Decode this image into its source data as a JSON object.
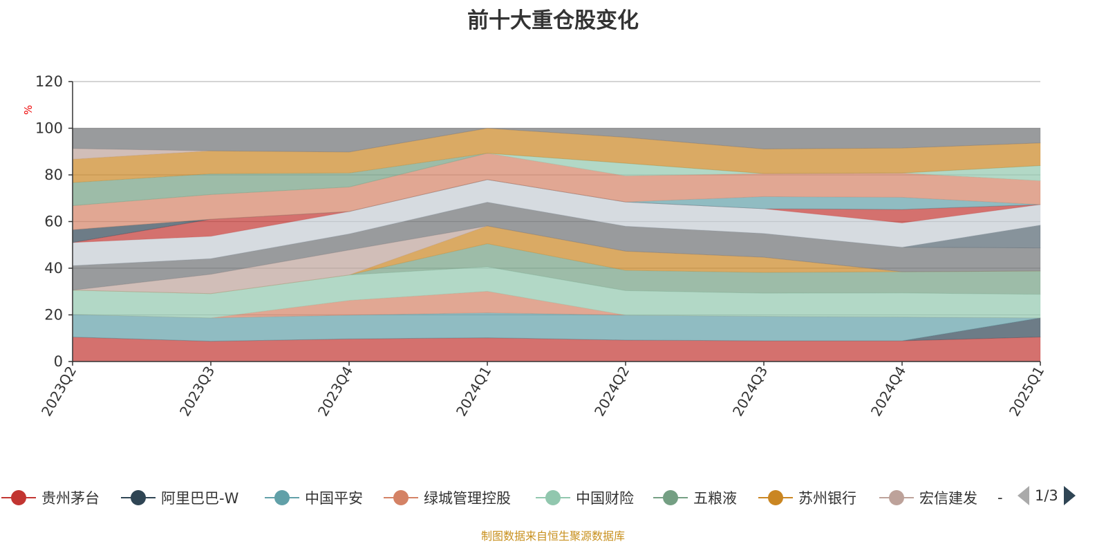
{
  "chart_data": {
    "type": "area",
    "stacked": true,
    "title": "前十大重仓股变化",
    "ylabel": "%",
    "xlabel": "",
    "ylim": [
      0,
      120
    ],
    "yticks": [
      0,
      20,
      40,
      60,
      80,
      100,
      120
    ],
    "grid": true,
    "legend_position": "bottom",
    "categories": [
      "2023Q2",
      "2023Q3",
      "2023Q4",
      "2024Q1",
      "2024Q2",
      "2024Q3",
      "2024Q4",
      "2025Q1"
    ],
    "series": [
      {
        "name": "贵州茅台",
        "color": "#c23531",
        "values": [
          10.5,
          8.7,
          9.7,
          10.2,
          9.2,
          8.9,
          8.9,
          10.5
        ]
      },
      {
        "name": "阿里巴巴-W",
        "color": "#2f4554",
        "values": [
          0,
          0,
          0,
          0,
          0,
          0,
          0,
          8.2
        ]
      },
      {
        "name": "中国平安",
        "color": "#61a0a8",
        "values": [
          9.7,
          10.0,
          10.2,
          10.7,
          10.7,
          10.5,
          10.2,
          0
        ]
      },
      {
        "name": "绿城管理控股",
        "color": "#d48265",
        "values": [
          0,
          0,
          6.3,
          9.2,
          0,
          0,
          0,
          0
        ]
      },
      {
        "name": "中国财险",
        "color": "#91c7ae",
        "values": [
          10.4,
          10.4,
          10.9,
          10.5,
          10.5,
          9.9,
          10.3,
          10.1
        ]
      },
      {
        "name": "五粮液",
        "color": "#749f83",
        "values": [
          0,
          0,
          0,
          9.9,
          8.7,
          8.9,
          9.1,
          10.0
        ]
      },
      {
        "name": "苏州银行",
        "color": "#ca8622",
        "values": [
          0,
          0,
          0,
          7.6,
          8.2,
          6.5,
          0,
          0
        ]
      },
      {
        "name": "宏信建发",
        "color": "#bda29a",
        "values": [
          0,
          8.3,
          10.7,
          0,
          0,
          0,
          0,
          0
        ]
      },
      {
        "name": null,
        "color": "#6e7074",
        "values": [
          10.5,
          6.7,
          6.9,
          10.2,
          10.7,
          10.2,
          10.5,
          9.9
        ]
      },
      {
        "name": null,
        "color": "#546570",
        "values": [
          0,
          0,
          0,
          0,
          0,
          0,
          0,
          9.8
        ]
      },
      {
        "name": null,
        "color": "#c4ccd3",
        "values": [
          9.9,
          9.6,
          9.6,
          9.7,
          10.4,
          10.6,
          10.4,
          8.8
        ]
      },
      {
        "name": null,
        "color": "#c23531",
        "values": [
          0,
          7.3,
          0,
          0,
          0,
          0,
          5.8,
          0
        ]
      },
      {
        "name": null,
        "color": "#2f4554",
        "values": [
          5.5,
          0,
          0,
          0,
          0,
          0,
          0,
          0
        ]
      },
      {
        "name": null,
        "color": "#61a0a8",
        "values": [
          0,
          0,
          0,
          0,
          0,
          5.2,
          5.2,
          0
        ]
      },
      {
        "name": null,
        "color": "#d48265",
        "values": [
          10.3,
          10.6,
          10.5,
          11.3,
          11.2,
          9.9,
          10.4,
          10.2
        ]
      },
      {
        "name": null,
        "color": "#91c7ae",
        "values": [
          0,
          0,
          0,
          0,
          5.4,
          0,
          0,
          6.5
        ]
      },
      {
        "name": null,
        "color": "#749f83",
        "values": [
          9.9,
          8.9,
          6.0,
          0,
          0,
          0,
          0,
          0
        ]
      },
      {
        "name": null,
        "color": "#ca8622",
        "values": [
          10.0,
          9.8,
          9.0,
          10.7,
          11.1,
          10.5,
          10.7,
          9.7
        ]
      },
      {
        "name": null,
        "color": "#bda29a",
        "values": [
          4.6,
          0,
          0,
          0,
          0,
          0,
          0,
          0
        ]
      },
      {
        "name": null,
        "color": "#6e7074",
        "values": [
          8.7,
          9.7,
          10.2,
          0,
          3.9,
          8.9,
          8.5,
          6.3
        ]
      }
    ]
  },
  "legend": {
    "items": [
      {
        "label": "贵州茅台",
        "color": "#c23531"
      },
      {
        "label": "阿里巴巴-W",
        "color": "#2f4554"
      },
      {
        "label": "中国平安",
        "color": "#61a0a8"
      },
      {
        "label": "绿城管理控股",
        "color": "#d48265"
      },
      {
        "label": "中国财险",
        "color": "#91c7ae"
      },
      {
        "label": "五粮液",
        "color": "#749f83"
      },
      {
        "label": "苏州银行",
        "color": "#ca8622"
      },
      {
        "label": "宏信建发",
        "color": "#bda29a"
      }
    ],
    "truncated": "-",
    "page": "1/3"
  },
  "footer": "制图数据来自恒生聚源数据库"
}
